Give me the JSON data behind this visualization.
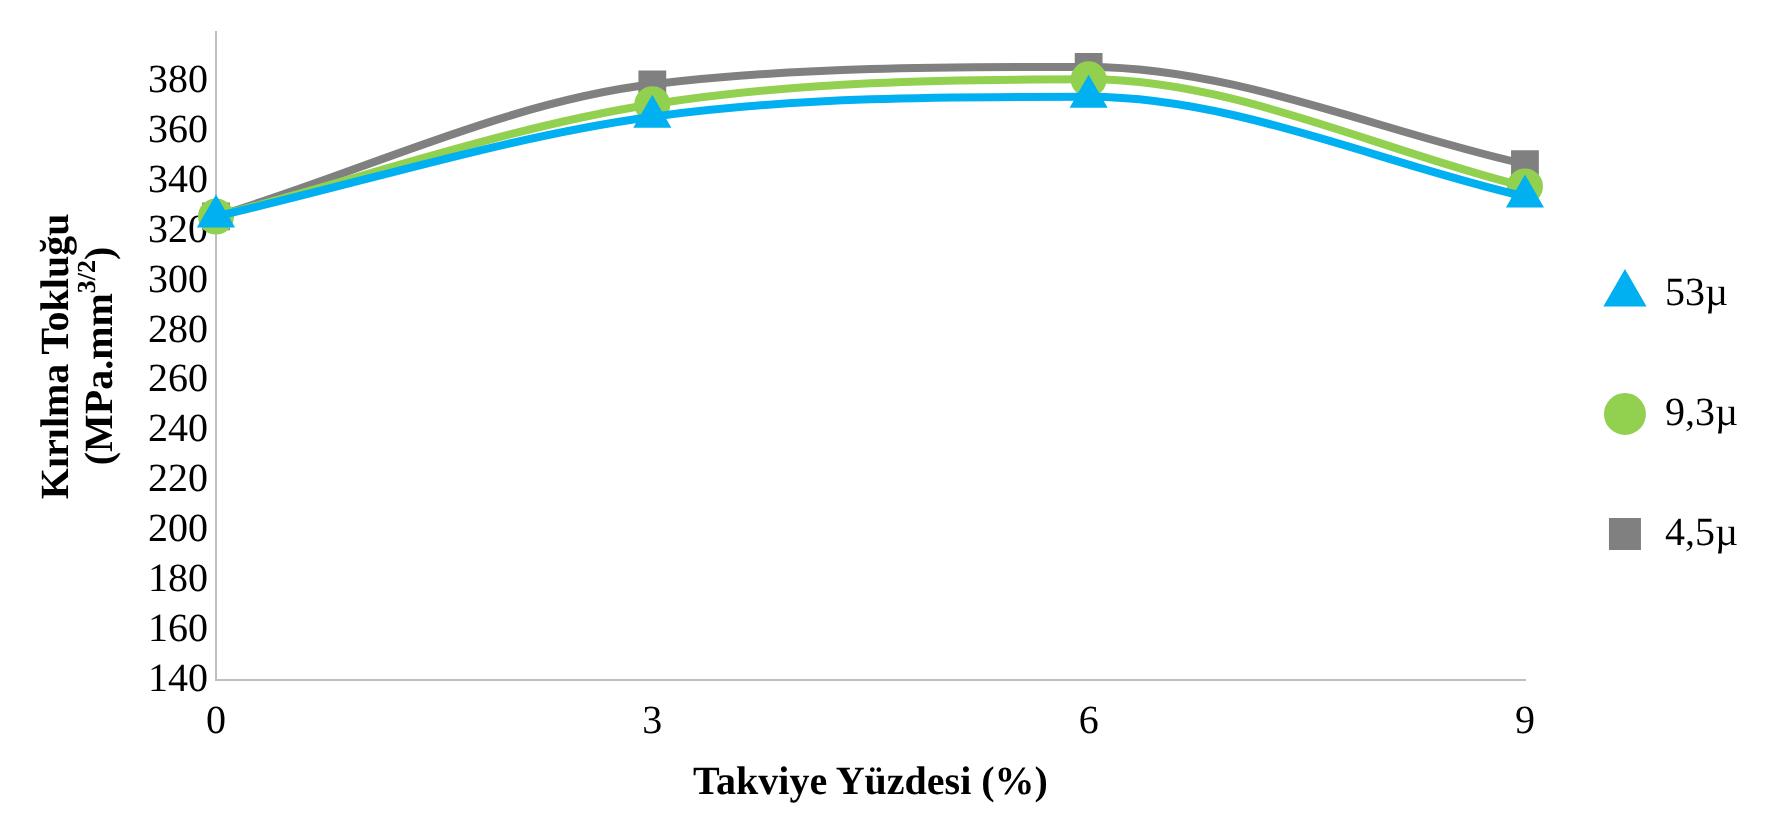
{
  "chart_data": {
    "type": "line",
    "xlabel": "Takviye Yüzdesi (%)",
    "ylabel": "Kırılma Tokluğu\n(MPa.mm$^{3/2}$)",
    "categories": [
      "0",
      "3",
      "6",
      "9"
    ],
    "ylim": [
      140,
      400
    ],
    "yticks": [
      140,
      160,
      180,
      200,
      220,
      240,
      260,
      280,
      300,
      320,
      340,
      360,
      380
    ],
    "grid": false,
    "legend": "right",
    "series": [
      {
        "name": "53µ",
        "color": "#00b0f0",
        "marker": "triangle",
        "values": [
          326,
          366,
          374,
          334
        ]
      },
      {
        "name": "9,3µ",
        "color": "#92d050",
        "marker": "circle",
        "values": [
          326,
          371,
          381,
          338
        ]
      },
      {
        "name": "4,5µ",
        "color": "#808080",
        "marker": "square",
        "values": [
          326,
          379,
          386,
          347
        ]
      }
    ]
  }
}
